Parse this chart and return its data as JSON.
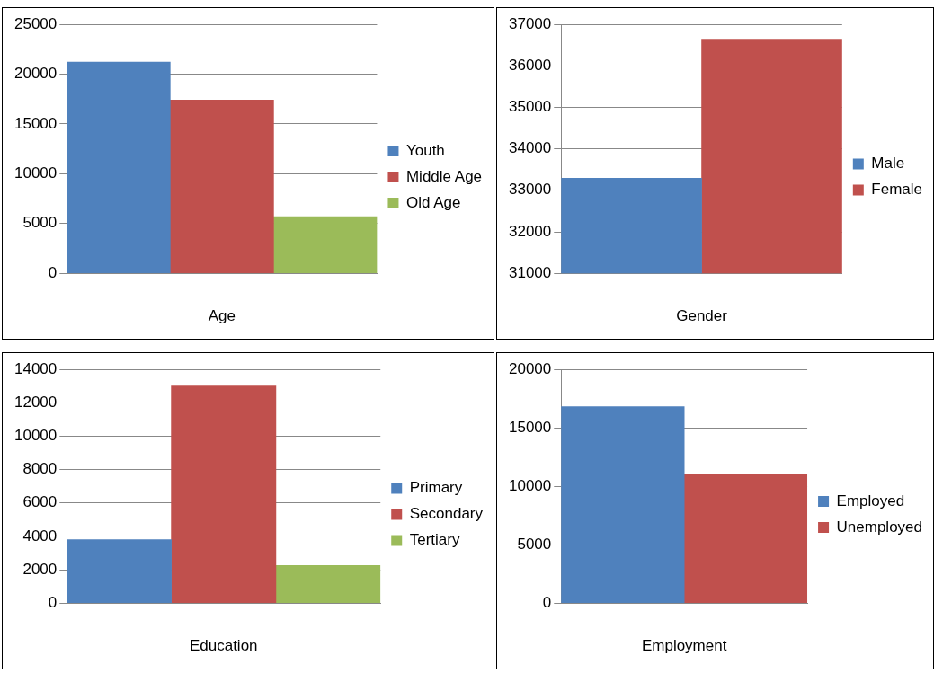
{
  "chart_data": [
    {
      "type": "bar",
      "xlabel": "Age",
      "categories": [
        null,
        null,
        null
      ],
      "series": [
        {
          "name": "Youth",
          "color": "#4f81bd",
          "values": [
            21200,
            null,
            null
          ]
        },
        {
          "name": "Middle Age",
          "color": "#c0504d",
          "values": [
            null,
            17400,
            null
          ]
        },
        {
          "name": "Old Age",
          "color": "#9bbb59",
          "values": [
            null,
            null,
            5700
          ]
        }
      ],
      "ylim": [
        0,
        25000
      ],
      "yticks": [
        0,
        5000,
        10000,
        15000,
        20000,
        25000
      ],
      "grid": "y",
      "legend": "right"
    },
    {
      "type": "bar",
      "xlabel": "Gender",
      "categories": [
        null,
        null
      ],
      "series": [
        {
          "name": "Male",
          "color": "#4f81bd",
          "values": [
            33290,
            null
          ]
        },
        {
          "name": "Female",
          "color": "#c0504d",
          "values": [
            null,
            36640
          ]
        }
      ],
      "ylim": [
        31000,
        37000
      ],
      "yticks": [
        31000,
        32000,
        33000,
        34000,
        35000,
        36000,
        37000
      ],
      "grid": "y",
      "legend": "right"
    },
    {
      "type": "bar",
      "xlabel": "Education",
      "categories": [
        null,
        null,
        null
      ],
      "series": [
        {
          "name": "Primary",
          "color": "#4f81bd",
          "values": [
            3800,
            null,
            null
          ]
        },
        {
          "name": "Secondary",
          "color": "#c0504d",
          "values": [
            null,
            13000,
            null
          ]
        },
        {
          "name": "Tertiary",
          "color": "#9bbb59",
          "values": [
            null,
            null,
            2250
          ]
        }
      ],
      "ylim": [
        0,
        14000
      ],
      "yticks": [
        0,
        2000,
        4000,
        6000,
        8000,
        10000,
        12000,
        14000
      ],
      "grid": "y",
      "legend": "right"
    },
    {
      "type": "bar",
      "xlabel": "Employment",
      "categories": [
        null,
        null
      ],
      "series": [
        {
          "name": "Employed",
          "color": "#4f81bd",
          "values": [
            16800,
            null
          ]
        },
        {
          "name": "Unemployed",
          "color": "#c0504d",
          "values": [
            null,
            11000
          ]
        }
      ],
      "ylim": [
        0,
        20000
      ],
      "yticks": [
        0,
        5000,
        10000,
        15000,
        20000
      ],
      "grid": "y",
      "legend": "right"
    }
  ]
}
